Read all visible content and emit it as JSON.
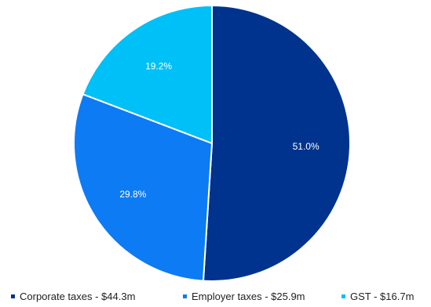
{
  "chart_data": {
    "type": "pie",
    "series": [
      {
        "name": "Corporate taxes - $44.3m",
        "value": 51.0,
        "label": "51.0%",
        "color": "#00338D"
      },
      {
        "name": "Employer taxes - $25.9m",
        "value": 29.8,
        "label": "29.8%",
        "color": "#0D7BF4"
      },
      {
        "name": "GST - $16.7m",
        "value": 19.2,
        "label": "19.2%",
        "color": "#00C0F8"
      }
    ],
    "start_angle": "12 o'clock",
    "direction": "clockwise",
    "legend_position": "bottom"
  }
}
